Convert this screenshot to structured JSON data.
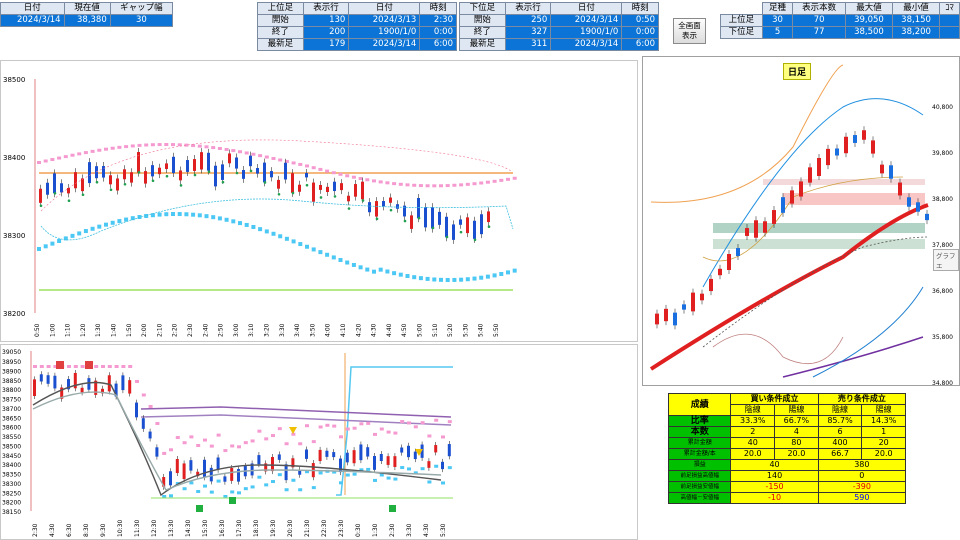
{
  "header": {
    "left": {
      "labels": [
        "日付",
        "現在値",
        "ギャップ幅"
      ],
      "values": [
        "2024/3/14",
        "38,380",
        "30"
      ]
    },
    "upper": {
      "labels": [
        "上位足",
        "表示行",
        "日付",
        "時刻"
      ],
      "rows": [
        {
          "label": "開始",
          "row": "130",
          "date": "2024/3/13",
          "time": "2:30"
        },
        {
          "label": "終了",
          "row": "200",
          "date": "1900/1/0",
          "time": "0:00"
        },
        {
          "label": "最新足",
          "row": "179",
          "date": "2024/3/14",
          "time": "6:00"
        }
      ]
    },
    "lower": {
      "labels": [
        "下位足",
        "表示行",
        "日付",
        "時刻"
      ],
      "rows": [
        {
          "label": "開始",
          "row": "250",
          "date": "2024/3/14",
          "time": "0:50"
        },
        {
          "label": "終了",
          "row": "327",
          "date": "1900/1/0",
          "time": "0:00"
        },
        {
          "label": "最新足",
          "row": "311",
          "date": "2024/3/14",
          "time": "6:00"
        }
      ]
    },
    "full_button": "全画面\n表示",
    "summary": {
      "labels": [
        "足種",
        "表示本数",
        "最大値",
        "最小値",
        "ｺﾏ"
      ],
      "rows": [
        {
          "label": "上位足",
          "kind": "30",
          "count": "70",
          "max": "39,050",
          "min": "38,150"
        },
        {
          "label": "下位足",
          "kind": "5",
          "count": "77",
          "max": "38,500",
          "min": "38,200"
        }
      ]
    }
  },
  "upper_chart": {
    "y_ticks": [
      "38500",
      "38400",
      "38300",
      "38200"
    ],
    "x_ticks": [
      "0:50",
      "1:00",
      "1:10",
      "1:20",
      "1:30",
      "1:40",
      "1:50",
      "2:00",
      "2:10",
      "2:20",
      "2:30",
      "2:40",
      "2:50",
      "3:00",
      "3:10",
      "3:20",
      "3:30",
      "3:40",
      "3:50",
      "4:00",
      "4:10",
      "4:20",
      "4:30",
      "4:40",
      "4:50",
      "5:00",
      "5:10",
      "5:20",
      "5:30",
      "5:40",
      "5:50"
    ]
  },
  "lower_chart": {
    "y_ticks": [
      "38950",
      "38900",
      "38850",
      "38800",
      "38750",
      "38700",
      "38650",
      "38600",
      "38550",
      "38500",
      "38450",
      "38400",
      "38350",
      "38300",
      "38250",
      "38200",
      "38150"
    ],
    "y_top": "39050",
    "x_ticks": [
      "2:30",
      "4:30",
      "6:30",
      "8:30",
      "9:30",
      "10:30",
      "11:30",
      "12:30",
      "13:30",
      "14:30",
      "15:30",
      "16:30",
      "17:30",
      "18:30",
      "19:30",
      "20:30",
      "21:30",
      "22:30",
      "23:30",
      "0:30",
      "1:30",
      "2:30",
      "3:30",
      "4:30",
      "5:30"
    ]
  },
  "daily_chart": {
    "title": "日足",
    "y_ticks": [
      "40,800",
      "39,800",
      "38,800",
      "37,800",
      "36,800",
      "35,800",
      "34,800"
    ],
    "tooltip": "グラフ エ"
  },
  "stats": {
    "header": [
      "成績",
      "買い条件成立",
      "売り条件成立"
    ],
    "sub": [
      "陰線",
      "陽線",
      "陰線",
      "陽線"
    ],
    "rows": [
      {
        "label": "比率",
        "v": [
          "33.3%",
          "66.7%",
          "85.7%",
          "14.3%"
        ]
      },
      {
        "label": "本数",
        "v": [
          "2",
          "4",
          "6",
          "1"
        ]
      },
      {
        "label": "累計金額",
        "v": [
          "40",
          "80",
          "400",
          "20"
        ]
      },
      {
        "label": "累計金額/本",
        "v": [
          "20.0",
          "20.0",
          "66.7",
          "20.0"
        ]
      }
    ],
    "rows2": [
      {
        "label": "損益",
        "a": "40",
        "b": "380"
      },
      {
        "label": "前足損益高値幅",
        "a": "140",
        "b": "0"
      },
      {
        "label": "前足損益安値幅",
        "a": "-150",
        "b": "-390"
      },
      {
        "label": "高値幅－安値幅",
        "a": "-10",
        "b": "590"
      }
    ]
  },
  "colors": {
    "accent_blue": "#0b74d6",
    "pink_band": "#f08cc8",
    "cyan_band": "#37c8f0",
    "orange_line": "#f0a050",
    "green_line": "#90e060",
    "ma_red": "#e02020"
  }
}
